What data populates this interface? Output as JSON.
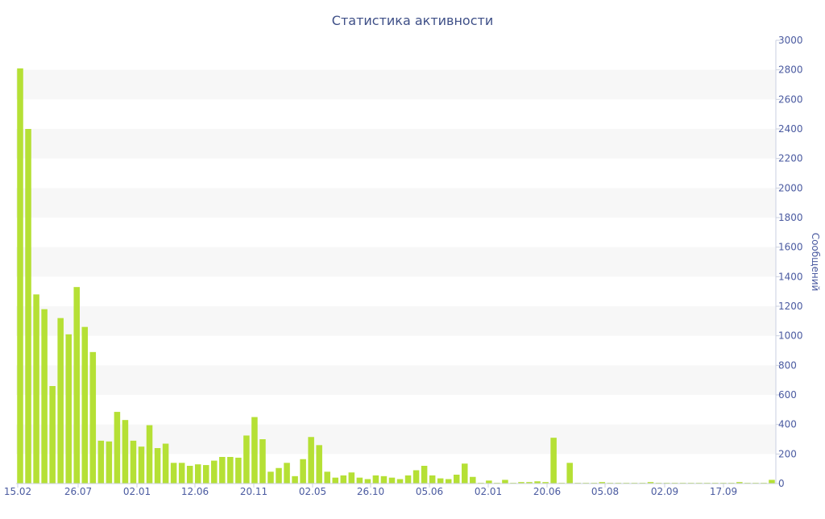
{
  "chart_data": {
    "type": "bar",
    "title": "Статистика активности",
    "ylabel": "Сообщений",
    "ylim": [
      0,
      3000
    ],
    "yticks": [
      0,
      200,
      400,
      600,
      800,
      1000,
      1200,
      1400,
      1600,
      1800,
      2000,
      2200,
      2400,
      2600,
      2800,
      3000
    ],
    "y_axis_side": "right",
    "x_tick_labels": [
      "15.02",
      "26.07",
      "02.01",
      "12.06",
      "20.11",
      "02.05",
      "26.10",
      "05.06",
      "02.01",
      "20.06",
      "05.08",
      "02.09",
      "17.09"
    ],
    "background_bands": "alternating horizontal bands",
    "bar_color": "#b5e035",
    "band_color": "#f7f7f7",
    "text_color": "#4a5aa0",
    "values": [
      2810,
      2400,
      1280,
      1180,
      660,
      1120,
      1010,
      1330,
      1060,
      890,
      290,
      285,
      485,
      430,
      290,
      250,
      395,
      240,
      270,
      140,
      140,
      120,
      130,
      125,
      155,
      180,
      180,
      175,
      325,
      450,
      300,
      80,
      105,
      140,
      50,
      165,
      315,
      260,
      80,
      40,
      55,
      75,
      40,
      30,
      55,
      50,
      40,
      30,
      55,
      90,
      120,
      55,
      35,
      30,
      60,
      135,
      45,
      5,
      20,
      5,
      25,
      5,
      10,
      10,
      15,
      10,
      310,
      5,
      140,
      5,
      5,
      5,
      10,
      5,
      5,
      5,
      5,
      5,
      10,
      5,
      5,
      5,
      5,
      5,
      5,
      5,
      5,
      5,
      5,
      10,
      5,
      5,
      5,
      25
    ]
  }
}
